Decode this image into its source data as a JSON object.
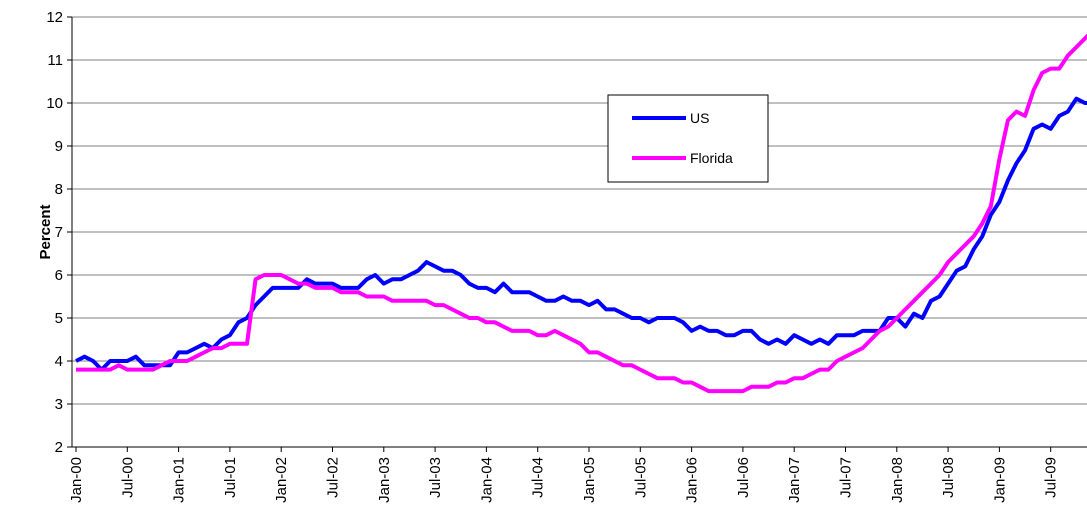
{
  "chart_data": {
    "type": "line",
    "y_label": "Percent",
    "categories": [
      "Jan-00",
      null,
      null,
      null,
      null,
      null,
      "Jul-00",
      null,
      null,
      null,
      null,
      null,
      "Jan-01",
      null,
      null,
      null,
      null,
      null,
      "Jul-01",
      null,
      null,
      null,
      null,
      null,
      "Jan-02",
      null,
      null,
      null,
      null,
      null,
      "Jul-02",
      null,
      null,
      null,
      null,
      null,
      "Jan-03",
      null,
      null,
      null,
      null,
      null,
      "Jul-03",
      null,
      null,
      null,
      null,
      null,
      "Jan-04",
      null,
      null,
      null,
      null,
      null,
      "Jul-04",
      null,
      null,
      null,
      null,
      null,
      "Jan-05",
      null,
      null,
      null,
      null,
      null,
      "Jul-05",
      null,
      null,
      null,
      null,
      null,
      "Jan-06",
      null,
      null,
      null,
      null,
      null,
      "Jul-06",
      null,
      null,
      null,
      null,
      null,
      "Jan-07",
      null,
      null,
      null,
      null,
      null,
      "Jul-07",
      null,
      null,
      null,
      null,
      null,
      "Jan-08",
      null,
      null,
      null,
      null,
      null,
      "Jul-08",
      null,
      null,
      null,
      null,
      null,
      "Jan-09",
      null,
      null,
      null,
      null,
      null,
      "Jul-09",
      null,
      null,
      null,
      null,
      null
    ],
    "series": [
      {
        "name": "US",
        "color": "#0000ff",
        "values": [
          4.0,
          4.1,
          4.0,
          3.8,
          4.0,
          4.0,
          4.0,
          4.1,
          3.9,
          3.9,
          3.9,
          3.9,
          4.2,
          4.2,
          4.3,
          4.4,
          4.3,
          4.5,
          4.6,
          4.9,
          5.0,
          5.3,
          5.5,
          5.7,
          5.7,
          5.7,
          5.7,
          5.9,
          5.8,
          5.8,
          5.8,
          5.7,
          5.7,
          5.7,
          5.9,
          6.0,
          5.8,
          5.9,
          5.9,
          6.0,
          6.1,
          6.3,
          6.2,
          6.1,
          6.1,
          6.0,
          5.8,
          5.7,
          5.7,
          5.6,
          5.8,
          5.6,
          5.6,
          5.6,
          5.5,
          5.4,
          5.4,
          5.5,
          5.4,
          5.4,
          5.3,
          5.4,
          5.2,
          5.2,
          5.1,
          5.0,
          5.0,
          4.9,
          5.0,
          5.0,
          5.0,
          4.9,
          4.7,
          4.8,
          4.7,
          4.7,
          4.6,
          4.6,
          4.7,
          4.7,
          4.5,
          4.4,
          4.5,
          4.4,
          4.6,
          4.5,
          4.4,
          4.5,
          4.4,
          4.6,
          4.6,
          4.6,
          4.7,
          4.7,
          4.7,
          5.0,
          5.0,
          4.8,
          5.1,
          5.0,
          5.4,
          5.5,
          5.8,
          6.1,
          6.2,
          6.6,
          6.9,
          7.4,
          7.7,
          8.2,
          8.6,
          8.9,
          9.4,
          9.5,
          9.4,
          9.7,
          9.8,
          10.1,
          10.0,
          10.0
        ]
      },
      {
        "name": "Florida",
        "color": "#ff00ff",
        "values": [
          3.8,
          3.8,
          3.8,
          3.8,
          3.8,
          3.9,
          3.8,
          3.8,
          3.8,
          3.8,
          3.9,
          4.0,
          4.0,
          4.0,
          4.1,
          4.2,
          4.3,
          4.3,
          4.4,
          4.4,
          4.4,
          5.9,
          6.0,
          6.0,
          6.0,
          5.9,
          5.8,
          5.8,
          5.7,
          5.7,
          5.7,
          5.6,
          5.6,
          5.6,
          5.5,
          5.5,
          5.5,
          5.4,
          5.4,
          5.4,
          5.4,
          5.4,
          5.3,
          5.3,
          5.2,
          5.1,
          5.0,
          5.0,
          4.9,
          4.9,
          4.8,
          4.7,
          4.7,
          4.7,
          4.6,
          4.6,
          4.7,
          4.6,
          4.5,
          4.4,
          4.2,
          4.2,
          4.1,
          4.0,
          3.9,
          3.9,
          3.8,
          3.7,
          3.6,
          3.6,
          3.6,
          3.5,
          3.5,
          3.4,
          3.3,
          3.3,
          3.3,
          3.3,
          3.3,
          3.4,
          3.4,
          3.4,
          3.5,
          3.5,
          3.6,
          3.6,
          3.7,
          3.8,
          3.8,
          4.0,
          4.1,
          4.2,
          4.3,
          4.5,
          4.7,
          4.8,
          5.0,
          5.2,
          5.4,
          5.6,
          5.8,
          6.0,
          6.3,
          6.5,
          6.7,
          6.9,
          7.2,
          7.6,
          8.7,
          9.6,
          9.8,
          9.7,
          10.3,
          10.7,
          10.8,
          10.8,
          11.1,
          11.3,
          11.5,
          11.7
        ]
      }
    ],
    "ylim": [
      2,
      12
    ],
    "yticks": [
      2,
      3,
      4,
      5,
      6,
      7,
      8,
      9,
      10,
      11,
      12
    ],
    "grid": true
  }
}
